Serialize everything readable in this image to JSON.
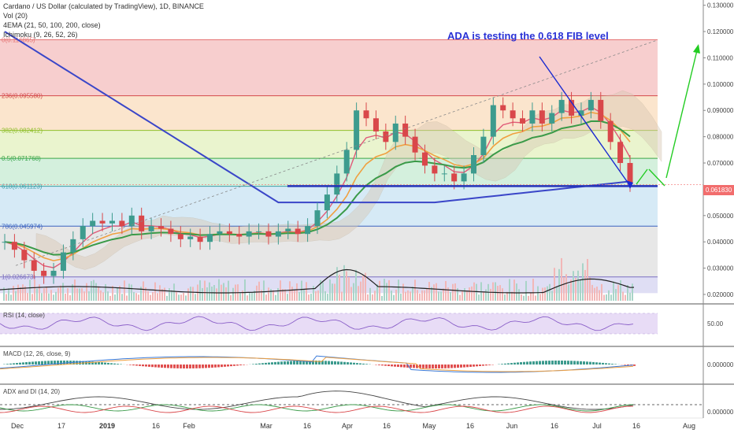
{
  "header": {
    "title": "Cardano / US Dollar (calculated by TradingView), 1D, BINANCE",
    "vol": "Vol (20)",
    "ema": "4EMA (21, 50, 100, 200, close)",
    "ichimoku": "Ichimoku (9, 26, 52, 26)"
  },
  "annotation": "ADA is testing the 0.618 FIB level",
  "price_tag": "0.061830",
  "colors": {
    "ema21": "#e05a78",
    "ema50": "#f0a040",
    "ema100": "#3a9a48",
    "ema200": "#3a46c8",
    "support": "#2333b8",
    "arrows_up": "#22cc22",
    "arrow_down": "#1a2ad0",
    "up_candle": "#3d9b8e",
    "down_candle": "#d9474a"
  },
  "chart_data": [
    {
      "type": "candlestick",
      "title": "Cardano / US Dollar (calculated by TradingView), 1D, BINANCE",
      "y_axis_ticks": [
        "0.130000",
        "0.120000",
        "0.110000",
        "0.100000",
        "0.090000",
        "0.080000",
        "0.070000",
        "0.060000",
        "0.050000",
        "0.040000",
        "0.030000",
        "0.020000"
      ],
      "x_axis_labels": [
        "Dec",
        "17",
        "2019",
        "16",
        "Feb",
        "Mar",
        "16",
        "Apr",
        "16",
        "May",
        "16",
        "Jun",
        "16",
        "Jul",
        "16",
        "Aug"
      ],
      "ylim": [
        0.017,
        0.132
      ],
      "fib_levels": [
        {
          "label": "0(0.116865)",
          "value": 0.116865,
          "color": "#e57373",
          "band": "#f6c9c9"
        },
        {
          "label": "236(0.095580)",
          "value": 0.09558,
          "color": "#d44a4a",
          "band": "#fbe2c8"
        },
        {
          "label": "382(0.082412)",
          "value": 0.082412,
          "color": "#8fbf2a",
          "band": "#e8f3c9"
        },
        {
          "label": "0.5(0.071768)",
          "value": 0.071768,
          "color": "#3aa64a",
          "band": "#cfeed9"
        },
        {
          "label": "618(0.061123)",
          "value": 0.061123,
          "color": "#3aa0a8",
          "band": "#d2e8f5"
        },
        {
          "label": "786(0.045974)",
          "value": 0.045974,
          "color": "#3a62c0",
          "band": "#e4e4e4"
        },
        {
          "label": "1(0.026673)",
          "value": 0.026673,
          "color": "#7a6ec0",
          "band": "#dcdaf3"
        }
      ],
      "last_price": 0.06183,
      "support_level": 0.0612,
      "close_series": [
        0.04,
        0.037,
        0.033,
        0.029,
        0.027,
        0.029,
        0.036,
        0.041,
        0.046,
        0.048,
        0.047,
        0.048,
        0.046,
        0.05,
        0.044,
        0.046,
        0.045,
        0.043,
        0.041,
        0.042,
        0.04,
        0.043,
        0.044,
        0.043,
        0.042,
        0.044,
        0.044,
        0.042,
        0.044,
        0.045,
        0.043,
        0.046,
        0.052,
        0.058,
        0.066,
        0.075,
        0.09,
        0.087,
        0.082,
        0.078,
        0.085,
        0.08,
        0.074,
        0.069,
        0.066,
        0.066,
        0.063,
        0.066,
        0.073,
        0.08,
        0.092,
        0.09,
        0.087,
        0.085,
        0.09,
        0.085,
        0.089,
        0.094,
        0.088,
        0.09,
        0.094,
        0.086,
        0.078,
        0.07,
        0.062
      ]
    },
    {
      "type": "line",
      "title": "RSI (14, close)",
      "y_axis_ticks": [
        "50.00"
      ]
    },
    {
      "type": "line",
      "title": "MACD (12, 26, close, 9)",
      "y_axis_ticks": [
        "0.000000"
      ]
    },
    {
      "type": "line",
      "title": "ADX and DI (14, 20)",
      "y_axis_ticks": [
        "0.000000"
      ]
    }
  ]
}
